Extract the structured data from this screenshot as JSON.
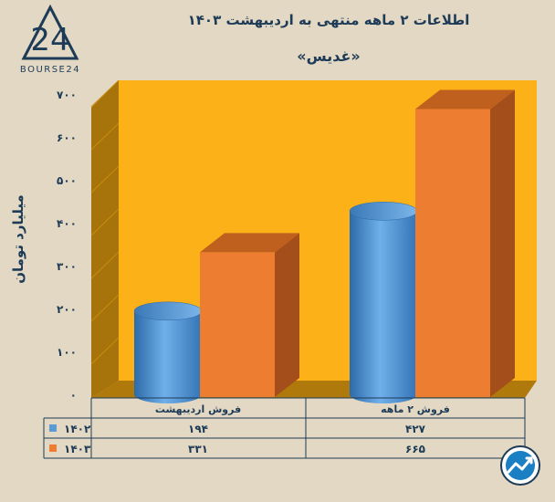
{
  "brand": {
    "name": "BOURSE24",
    "mark": "24"
  },
  "chart_data": {
    "type": "bar",
    "title": "اطلاعات ۲ ماهه منتهی به اردیبهشت ۱۴۰۳",
    "subtitle": "«غدیس»",
    "ylabel": "میلیارد تومان",
    "xlabel": "",
    "ylim": [
      0,
      700
    ],
    "yticks": [
      0,
      100,
      200,
      300,
      400,
      500,
      600,
      700
    ],
    "ytick_labels": [
      "۰",
      "۱۰۰",
      "۲۰۰",
      "۳۰۰",
      "۴۰۰",
      "۵۰۰",
      "۶۰۰",
      "۷۰۰"
    ],
    "categories": [
      "فروش اردیبهشت",
      "فروش ۲ ماهه"
    ],
    "series": [
      {
        "name": "۱۴۰۲",
        "values": [
          194,
          427
        ],
        "value_labels": [
          "۱۹۴",
          "۴۲۷"
        ],
        "color": "#5b9bd5"
      },
      {
        "name": "۱۴۰۳",
        "values": [
          331,
          665
        ],
        "value_labels": [
          "۳۳۱",
          "۶۶۵"
        ],
        "color": "#ed7d31"
      }
    ],
    "plot_background": "#fbb117",
    "grid": true,
    "legend": "data-table"
  }
}
